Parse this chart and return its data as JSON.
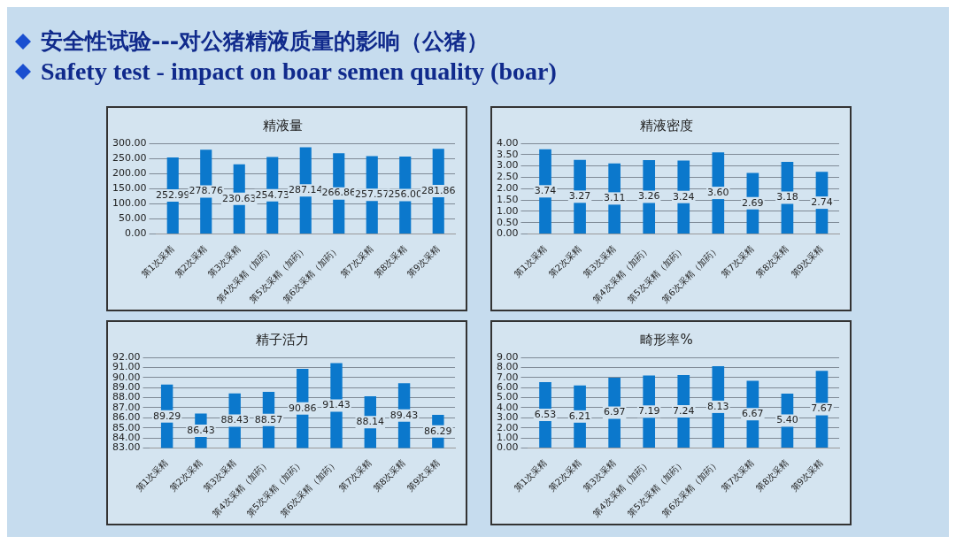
{
  "chart_data": [
    {
      "type": "other",
      "title": "安全性试验---对公猪精液质量的影响（公猪）",
      "subtitle": "Safety test - impact on boar semen quality (boar)"
    },
    {
      "type": "bar",
      "title": "精液量",
      "categories": [
        "第1次采精",
        "第2次采精",
        "第3次采精",
        "第4次采精（加药）",
        "第5次采精（加药）",
        "第6次采精（加药）",
        "第7次采精",
        "第8次采精",
        "第9次采精"
      ],
      "values": [
        252.99,
        278.76,
        230.63,
        254.73,
        287.14,
        266.86,
        257.57,
        256.0,
        281.86
      ],
      "value_labels": [
        "252.99",
        "278.76",
        "230.63",
        "254.73",
        "287.14",
        "266.86",
        "257.57",
        "256.00",
        "281.86"
      ],
      "color": "#0b78cc",
      "ylim": [
        0,
        300
      ],
      "yticks": [
        {
          "value": 0,
          "label": "0.00"
        },
        {
          "value": 50,
          "label": "50.00"
        },
        {
          "value": 100,
          "label": "100.00"
        },
        {
          "value": 150,
          "label": "150.00"
        },
        {
          "value": 200,
          "label": "200.00"
        },
        {
          "value": 250,
          "label": "250.00"
        },
        {
          "value": 300,
          "label": "300.00"
        }
      ],
      "grid": "y"
    },
    {
      "type": "bar",
      "title": "精液密度",
      "categories": [
        "第1次采精",
        "第2次采精",
        "第3次采精",
        "第4次采精（加药）",
        "第5次采精（加药）",
        "第6次采精（加药）",
        "第7次采精",
        "第8次采精",
        "第9次采精"
      ],
      "values": [
        3.74,
        3.27,
        3.11,
        3.26,
        3.24,
        3.6,
        2.69,
        3.18,
        2.74
      ],
      "value_labels": [
        "3.74",
        "3.27",
        "3.11",
        "3.26",
        "3.24",
        "3.60",
        "2.69",
        "3.18",
        "2.74"
      ],
      "color": "#0b78cc",
      "ylim": [
        0,
        4
      ],
      "yticks": [
        {
          "value": 0,
          "label": "0.00"
        },
        {
          "value": 0.5,
          "label": "0.50"
        },
        {
          "value": 1,
          "label": "1.00"
        },
        {
          "value": 1.5,
          "label": "1.50"
        },
        {
          "value": 2,
          "label": "2.00"
        },
        {
          "value": 2.5,
          "label": "2.50"
        },
        {
          "value": 3,
          "label": "3.00"
        },
        {
          "value": 3.5,
          "label": "3.50"
        },
        {
          "value": 4,
          "label": "4.00"
        }
      ],
      "grid": "y"
    },
    {
      "type": "bar",
      "title": "精子活力",
      "categories": [
        "第1次采精",
        "第2次采精",
        "第3次采精",
        "第4次采精（加药）",
        "第5次采精（加药）",
        "第6次采精（加药）",
        "第7次采精",
        "第8次采精",
        "第9次采精"
      ],
      "values": [
        89.29,
        86.43,
        88.43,
        88.57,
        90.86,
        91.43,
        88.14,
        89.43,
        86.29
      ],
      "value_labels": [
        "89.29",
        "86.43",
        "88.43",
        "88.57",
        "90.86",
        "91.43",
        "88.14",
        "89.43",
        "86.29"
      ],
      "color": "#0b78cc",
      "ylim": [
        83,
        92
      ],
      "yticks": [
        {
          "value": 83,
          "label": "83.00"
        },
        {
          "value": 84,
          "label": "84.00"
        },
        {
          "value": 85,
          "label": "85.00"
        },
        {
          "value": 86,
          "label": "86.00"
        },
        {
          "value": 87,
          "label": "87.00"
        },
        {
          "value": 88,
          "label": "88.00"
        },
        {
          "value": 89,
          "label": "89.00"
        },
        {
          "value": 90,
          "label": "90.00"
        },
        {
          "value": 91,
          "label": "91.00"
        },
        {
          "value": 92,
          "label": "92.00"
        }
      ],
      "grid": "y"
    },
    {
      "type": "bar",
      "title": "畸形率%",
      "categories": [
        "第1次采精",
        "第2次采精",
        "第3次采精",
        "第4次采精（加药）",
        "第5次采精（加药）",
        "第6次采精（加药）",
        "第7次采精",
        "第8次采精",
        "第9次采精"
      ],
      "values": [
        6.53,
        6.21,
        6.97,
        7.19,
        7.24,
        8.13,
        6.67,
        5.4,
        7.67
      ],
      "value_labels": [
        "6.53",
        "6.21",
        "6.97",
        "7.19",
        "7.24",
        "8.13",
        "6.67",
        "5.40",
        "7.67"
      ],
      "color": "#0b78cc",
      "ylim": [
        0,
        9
      ],
      "yticks": [
        {
          "value": 0,
          "label": "0.00"
        },
        {
          "value": 1,
          "label": "1.00"
        },
        {
          "value": 2,
          "label": "2.00"
        },
        {
          "value": 3,
          "label": "3.00"
        },
        {
          "value": 4,
          "label": "4.00"
        },
        {
          "value": 5,
          "label": "5.00"
        },
        {
          "value": 6,
          "label": "6.00"
        },
        {
          "value": 7,
          "label": "7.00"
        },
        {
          "value": 8,
          "label": "8.00"
        },
        {
          "value": 9,
          "label": "9.00"
        }
      ],
      "grid": "y"
    }
  ]
}
